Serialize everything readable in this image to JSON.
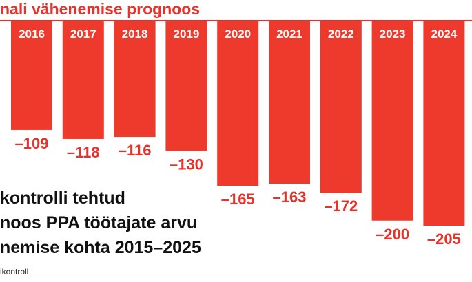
{
  "chart_data": {
    "type": "bar",
    "title": "nali vähenemise prognoos",
    "categories": [
      "2016",
      "2017",
      "2018",
      "2019",
      "2020",
      "2021",
      "2022",
      "2023",
      "2024"
    ],
    "values": [
      -109,
      -118,
      -116,
      -130,
      -165,
      -163,
      -172,
      -200,
      -205
    ],
    "value_labels": [
      "–109",
      "–118",
      "–116",
      "–130",
      "–165",
      "–163",
      "–172",
      "–200",
      "–205"
    ],
    "xlabel": "",
    "ylabel": "",
    "ylim": [
      -205,
      0
    ],
    "grid": false,
    "legend": "none"
  },
  "caption": {
    "line1": "kontrolli tehtud",
    "line2": "noos PPA töötajate arvu",
    "line3": "nemise kohta 2015–2025"
  },
  "source": "ikontroll",
  "colors": {
    "bar": "#ee3a2c",
    "accent": "#e8312a",
    "tick_text": "#ffffff",
    "value_text": "#e8312a"
  }
}
